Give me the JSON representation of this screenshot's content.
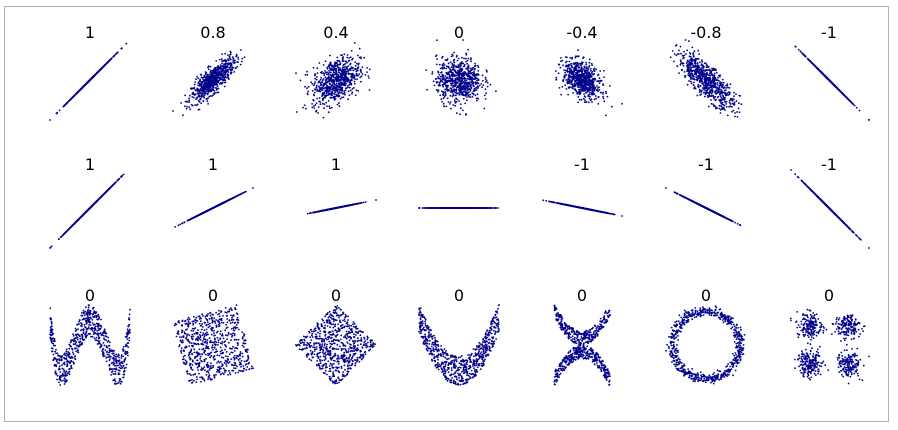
{
  "chart_data": {
    "type": "scatter",
    "layout": "grid",
    "colors": {
      "points": "#00008b",
      "frame": "#b0b0b0",
      "label": "#000000"
    },
    "rows": [
      {
        "panels": [
          {
            "r_label": "1",
            "kind": "gauss",
            "r": 1
          },
          {
            "r_label": "0.8",
            "kind": "gauss",
            "r": 0.8
          },
          {
            "r_label": "0.4",
            "kind": "gauss",
            "r": 0.4
          },
          {
            "r_label": "0",
            "kind": "gauss",
            "r": 0
          },
          {
            "r_label": "-0.4",
            "kind": "gauss",
            "r": -0.4
          },
          {
            "r_label": "-0.8",
            "kind": "gauss",
            "r": -0.8
          },
          {
            "r_label": "-1",
            "kind": "gauss",
            "r": -1
          }
        ]
      },
      {
        "panels": [
          {
            "r_label": "1",
            "kind": "line",
            "slope": 1
          },
          {
            "r_label": "1",
            "kind": "line",
            "slope": 0.5
          },
          {
            "r_label": "1",
            "kind": "line",
            "slope": 0.2
          },
          {
            "r_label": "",
            "kind": "line",
            "slope": 0
          },
          {
            "r_label": "-1",
            "kind": "line",
            "slope": -0.2
          },
          {
            "r_label": "-1",
            "kind": "line",
            "slope": -0.5
          },
          {
            "r_label": "-1",
            "kind": "line",
            "slope": -1
          }
        ]
      },
      {
        "panels": [
          {
            "r_label": "0",
            "kind": "wave"
          },
          {
            "r_label": "0",
            "kind": "rotated-square",
            "angle_deg": 15
          },
          {
            "r_label": "0",
            "kind": "rotated-square",
            "angle_deg": 45
          },
          {
            "r_label": "0",
            "kind": "parabola"
          },
          {
            "r_label": "0",
            "kind": "x-shape"
          },
          {
            "r_label": "0",
            "kind": "ring"
          },
          {
            "r_label": "0",
            "kind": "four-clusters"
          }
        ]
      }
    ]
  }
}
